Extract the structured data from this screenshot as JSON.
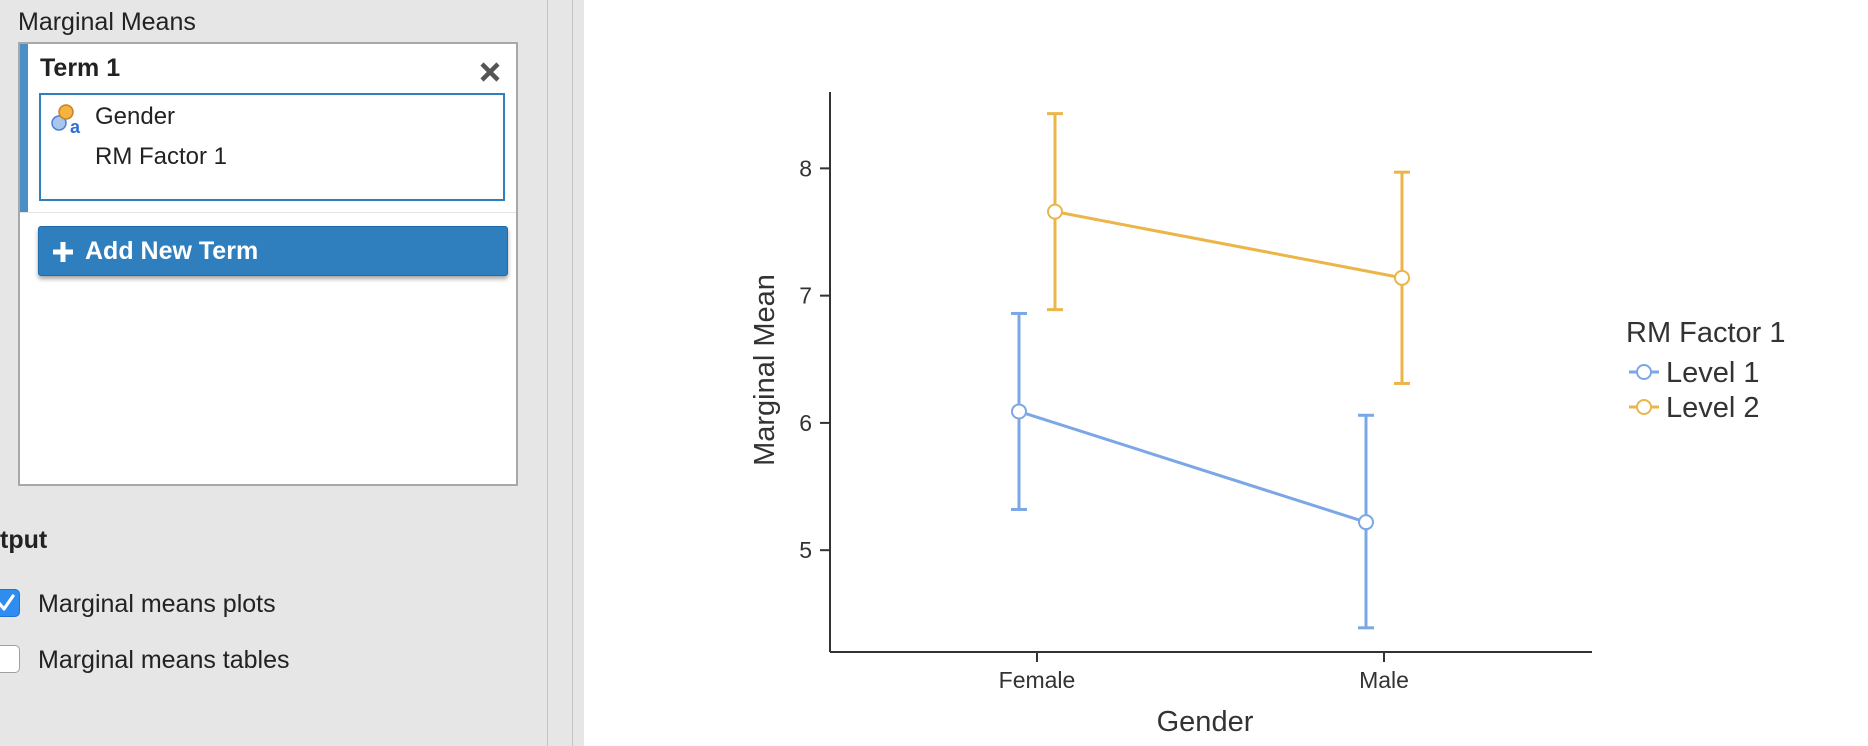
{
  "options_panel": {
    "section_title": "Marginal Means",
    "term_card": {
      "title": "Term 1",
      "items": [
        {
          "label": "Gender",
          "icon": "nominal-variable-icon"
        },
        {
          "label": "RM Factor 1",
          "icon": ""
        }
      ],
      "close_icon": "close-icon"
    },
    "add_term_label": "Add New Term",
    "add_term_icon": "plus-icon",
    "output": {
      "heading": "tput",
      "options": [
        {
          "label": "Marginal means plots",
          "checked": true
        },
        {
          "label": "Marginal means tables",
          "checked": false
        }
      ]
    }
  },
  "colors": {
    "accent": "#2f7fbf",
    "level1": "#7ba7e6",
    "level2": "#ebb54a"
  },
  "chart_data": {
    "type": "line",
    "categories": [
      "Female",
      "Male"
    ],
    "xlabel": "Gender",
    "ylabel": "Marginal Mean",
    "ylim": [
      4.2,
      8.6
    ],
    "yticks": [
      5,
      6,
      7,
      8
    ],
    "legend_title": "RM Factor 1",
    "legend_position": "right",
    "grid": false,
    "error_bars": true,
    "series": [
      {
        "name": "Level 1",
        "color": "#7ba7e6",
        "values": [
          6.09,
          5.22
        ],
        "lower": [
          5.32,
          4.39
        ],
        "upper": [
          6.86,
          6.06
        ]
      },
      {
        "name": "Level 2",
        "color": "#ebb54a",
        "values": [
          7.66,
          7.14
        ],
        "lower": [
          6.89,
          6.31
        ],
        "upper": [
          8.43,
          7.97
        ]
      }
    ]
  }
}
